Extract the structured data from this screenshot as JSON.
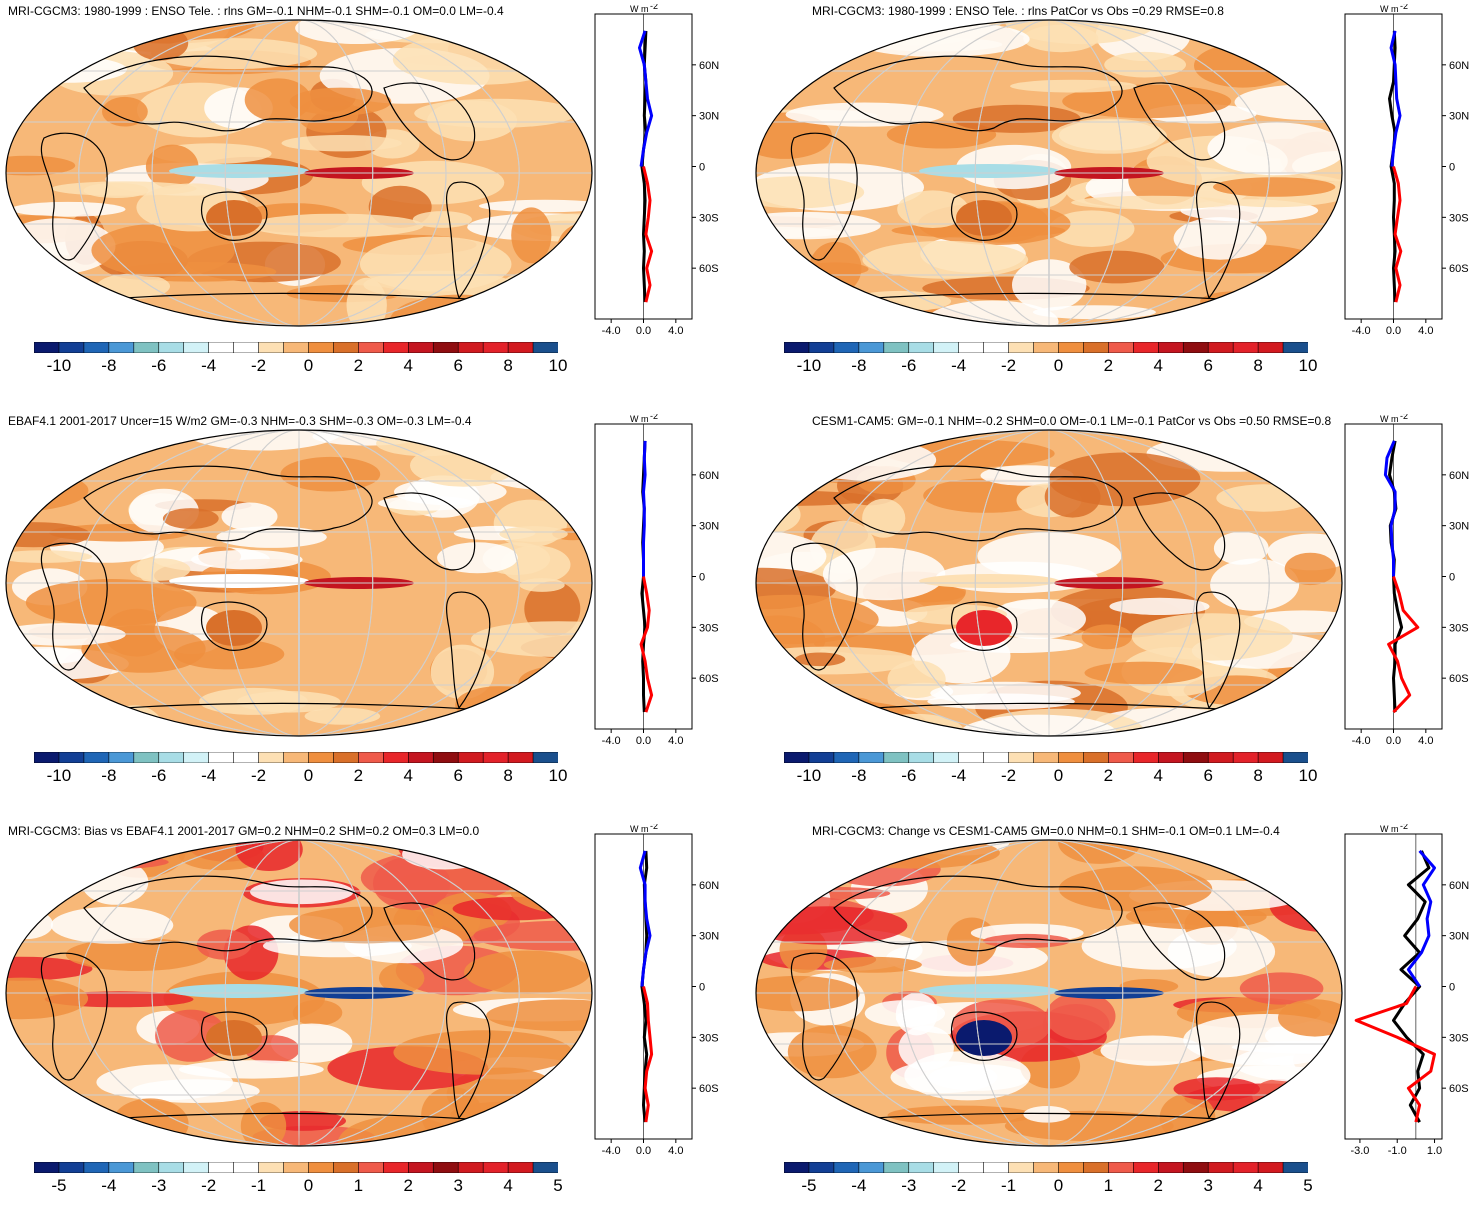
{
  "colors": {
    "palette": [
      "#0a1a6e",
      "#123f95",
      "#1f66b6",
      "#4b98d6",
      "#7fc2c2",
      "#a8dde6",
      "#d2f2f7",
      "#ffffff",
      "#ffffff",
      "#fde0b4",
      "#f7b878",
      "#ef8f3f",
      "#d9702a",
      "#ef5a4a",
      "#e8262a",
      "#c41520",
      "#8f0d10",
      "#d01a1f",
      "#e3222a",
      "#d2191f",
      "#1a4f8c"
    ],
    "obs_line": "#000000",
    "nh_line": "#0000ff",
    "sh_line": "#ff0000",
    "grid": "#cfcfcf"
  },
  "panels": [
    {
      "id": "p1",
      "title": "MRI-CGCM3: 1980-1999 : ENSO Tele. : rlns GM=-0.1 NHM=-0.1 SHM=-0.1 OM=0.0 LM=-0.4",
      "cbar_labels": [
        "-10",
        "-8",
        "-6",
        "-4",
        "-2",
        "0",
        "2",
        "4",
        "6",
        "8",
        "10"
      ],
      "profile_unit": "W m",
      "profile_unit_exp": "-2",
      "profile_x_ticks": [
        "-4.0",
        "0.0",
        "4.0"
      ],
      "profile_lat_ticks": [
        "60N",
        "30N",
        "0",
        "30S",
        "60S"
      ]
    },
    {
      "id": "p2",
      "title": "MRI-CGCM3: 1980-1999 : ENSO Tele. : rlns PatCor vs Obs =0.29 RMSE=0.8",
      "cbar_labels": [
        "-10",
        "-8",
        "-6",
        "-4",
        "-2",
        "0",
        "2",
        "4",
        "6",
        "8",
        "10"
      ],
      "profile_unit": "W m",
      "profile_unit_exp": "-2",
      "profile_x_ticks": [
        "-4.0",
        "0.0",
        "4.0"
      ],
      "profile_lat_ticks": [
        "60N",
        "30N",
        "0",
        "30S",
        "60S"
      ]
    },
    {
      "id": "p3",
      "title": "EBAF4.1 2001-2017 Uncer=15 W/m2 GM=-0.3 NHM=-0.3 SHM=-0.3 OM=-0.3 LM=-0.4",
      "cbar_labels": [
        "-10",
        "-8",
        "-6",
        "-4",
        "-2",
        "0",
        "2",
        "4",
        "6",
        "8",
        "10"
      ],
      "profile_unit": "W m",
      "profile_unit_exp": "-2",
      "profile_x_ticks": [
        "-4.0",
        "0.0",
        "4.0"
      ],
      "profile_lat_ticks": [
        "60N",
        "30N",
        "0",
        "30S",
        "60S"
      ]
    },
    {
      "id": "p4",
      "title": "CESM1-CAM5: GM=-0.1 NHM=-0.2 SHM=0.0 OM=-0.1 LM=-0.1 PatCor vs Obs =0.50 RMSE=0.8",
      "cbar_labels": [
        "-10",
        "-8",
        "-6",
        "-4",
        "-2",
        "0",
        "2",
        "4",
        "6",
        "8",
        "10"
      ],
      "profile_unit": "W m",
      "profile_unit_exp": "-2",
      "profile_x_ticks": [
        "-4.0",
        "0.0",
        "4.0"
      ],
      "profile_lat_ticks": [
        "60N",
        "30N",
        "0",
        "30S",
        "60S"
      ]
    },
    {
      "id": "p5",
      "title": "MRI-CGCM3: Bias vs EBAF4.1 2001-2017 GM=0.2 NHM=0.2 SHM=0.2 OM=0.3 LM=0.0",
      "cbar_labels": [
        "-5",
        "-4",
        "-3",
        "-2",
        "-1",
        "0",
        "1",
        "2",
        "3",
        "4",
        "5"
      ],
      "profile_unit": "W m",
      "profile_unit_exp": "-2",
      "profile_x_ticks": [
        "-4.0",
        "0.0",
        "4.0"
      ],
      "profile_lat_ticks": [
        "60N",
        "30N",
        "0",
        "30S",
        "60S"
      ]
    },
    {
      "id": "p6",
      "title": "MRI-CGCM3: Change vs CESM1-CAM5 GM=0.0 NHM=0.1 SHM=-0.1 OM=0.1 LM=-0.4",
      "cbar_labels": [
        "-5",
        "-4",
        "-3",
        "-2",
        "-1",
        "0",
        "1",
        "2",
        "3",
        "4",
        "5"
      ],
      "profile_unit": "W m",
      "profile_unit_exp": "-2",
      "profile_x_ticks": [
        "-3.0",
        "-1.0",
        "1.0"
      ],
      "profile_lat_ticks": [
        "60N",
        "30N",
        "0",
        "30S",
        "60S"
      ]
    }
  ],
  "chart_data": [
    {
      "type": "heatmap",
      "title": "MRI-CGCM3: 1980-1999 : ENSO Tele. : rlns GM=-0.1 NHM=-0.1 SHM=-0.1 OM=0.0 LM=-0.4",
      "colorbar_range": [
        -10,
        10
      ],
      "colorbar_ticks": [
        -10,
        -8,
        -6,
        -4,
        -2,
        0,
        2,
        4,
        6,
        8,
        10
      ],
      "zonal_profile": {
        "x_range": [
          -6,
          6
        ],
        "lat": [
          80,
          70,
          60,
          50,
          40,
          30,
          20,
          10,
          0,
          -10,
          -20,
          -30,
          -40,
          -50,
          -60,
          -70,
          -80
        ],
        "series": [
          {
            "values": [
              0.3,
              0.2,
              0.1,
              0.3,
              0.2,
              0.1,
              0.3,
              0.0,
              -0.2,
              0.1,
              0.2,
              0.1,
              0.0,
              0.1,
              0.0,
              0.1,
              0.2
            ]
          },
          {
            "values": [
              0.2,
              -0.5,
              0.1,
              0.3,
              0.5,
              1.0,
              0.4,
              0.0,
              -0.3,
              0.0,
              0.0,
              0.0,
              0.0,
              0.0,
              0.0,
              0.0,
              0.0
            ]
          },
          {
            "values": [
              0.0,
              0.0,
              0.0,
              0.0,
              0.0,
              0.0,
              0.0,
              0.0,
              0.0,
              0.5,
              0.8,
              0.6,
              0.3,
              1.0,
              0.4,
              0.8,
              0.3
            ]
          }
        ]
      }
    },
    {
      "type": "heatmap",
      "title": "MRI-CGCM3: 1980-1999 : ENSO Tele. : rlns PatCor vs Obs =0.29 RMSE=0.8",
      "colorbar_range": [
        -10,
        10
      ],
      "colorbar_ticks": [
        -10,
        -8,
        -6,
        -4,
        -2,
        0,
        2,
        4,
        6,
        8,
        10
      ],
      "zonal_profile": {
        "x_range": [
          -6,
          6
        ],
        "lat": [
          80,
          70,
          60,
          50,
          40,
          30,
          20,
          10,
          0,
          -10,
          -20,
          -30,
          -40,
          -50,
          -60,
          -70,
          -80
        ],
        "series": [
          {
            "values": [
              0.1,
              0.2,
              0.1,
              0.0,
              -0.5,
              -0.2,
              0.2,
              0.0,
              -0.3,
              0.1,
              0.1,
              0.0,
              0.1,
              0.2,
              0.0,
              0.1,
              0.2
            ]
          },
          {
            "values": [
              0.2,
              -0.3,
              0.2,
              0.3,
              0.4,
              0.8,
              0.3,
              0.0,
              -0.2,
              0.0,
              0.0,
              0.0,
              0.0,
              0.0,
              0.0,
              0.0,
              0.0
            ]
          },
          {
            "values": [
              0.0,
              0.0,
              0.0,
              0.0,
              0.0,
              0.0,
              0.0,
              0.0,
              0.0,
              0.6,
              0.8,
              0.5,
              0.2,
              0.9,
              0.3,
              0.8,
              0.3
            ]
          }
        ]
      }
    },
    {
      "type": "heatmap",
      "title": "EBAF4.1 2001-2017 Uncer=15 W/m2 GM=-0.3 NHM=-0.3 SHM=-0.3 OM=-0.3 LM=-0.4",
      "colorbar_range": [
        -10,
        10
      ],
      "colorbar_ticks": [
        -10,
        -8,
        -6,
        -4,
        -2,
        0,
        2,
        4,
        6,
        8,
        10
      ],
      "zonal_profile": {
        "x_range": [
          -6,
          6
        ],
        "lat": [
          80,
          70,
          60,
          50,
          40,
          30,
          20,
          10,
          0,
          -10,
          -20,
          -30,
          -40,
          -50,
          -60,
          -70,
          -80
        ],
        "series": [
          {
            "values": [
              0.2,
              0.1,
              0.0,
              -0.1,
              0.1,
              0.0,
              -0.1,
              0.0,
              0.0,
              -0.2,
              0.0,
              0.2,
              0.0,
              -0.1,
              0.0,
              0.0,
              0.1
            ]
          },
          {
            "values": [
              0.2,
              0.1,
              0.2,
              0.0,
              0.1,
              0.1,
              0.0,
              0.0,
              0.0,
              0.0,
              0.0,
              0.0,
              0.0,
              0.0,
              0.0,
              0.0,
              0.0
            ]
          },
          {
            "values": [
              0.0,
              0.0,
              0.0,
              0.0,
              0.0,
              0.0,
              0.0,
              0.0,
              0.0,
              0.4,
              0.7,
              0.5,
              -0.3,
              0.2,
              0.5,
              1.0,
              0.3
            ]
          }
        ]
      }
    },
    {
      "type": "heatmap",
      "title": "CESM1-CAM5: GM=-0.1 NHM=-0.2 SHM=0.0 OM=-0.1 LM=-0.1 PatCor vs Obs =0.50 RMSE=0.8",
      "colorbar_range": [
        -10,
        10
      ],
      "colorbar_ticks": [
        -10,
        -8,
        -6,
        -4,
        -2,
        0,
        2,
        4,
        6,
        8,
        10
      ],
      "zonal_profile": {
        "x_range": [
          -6,
          6
        ],
        "lat": [
          80,
          70,
          60,
          50,
          40,
          30,
          20,
          10,
          0,
          -10,
          -20,
          -30,
          -40,
          -50,
          -60,
          -70,
          -80
        ],
        "series": [
          {
            "values": [
              0.2,
              -0.2,
              -0.5,
              0.1,
              0.3,
              -0.4,
              -0.3,
              0.1,
              0.0,
              0.1,
              0.5,
              1.0,
              0.2,
              0.2,
              0.0,
              0.1,
              0.2
            ]
          },
          {
            "values": [
              0.1,
              -0.8,
              -1.0,
              0.2,
              0.2,
              -0.3,
              -0.2,
              0.0,
              0.0,
              0.0,
              0.0,
              0.0,
              0.0,
              0.0,
              0.0,
              0.0,
              0.0
            ]
          },
          {
            "values": [
              0.0,
              0.0,
              0.0,
              0.0,
              0.0,
              0.0,
              0.0,
              0.0,
              0.0,
              0.7,
              1.2,
              3.0,
              -0.6,
              0.5,
              1.0,
              2.0,
              0.0
            ]
          }
        ]
      }
    },
    {
      "type": "heatmap",
      "title": "MRI-CGCM3: Bias vs EBAF4.1 2001-2017 GM=0.2 NHM=0.2 SHM=0.2 OM=0.3 LM=0.0",
      "colorbar_range": [
        -5,
        5
      ],
      "colorbar_ticks": [
        -5,
        -4,
        -3,
        -2,
        -1,
        0,
        1,
        2,
        3,
        4,
        5
      ],
      "zonal_profile": {
        "x_range": [
          -6,
          6
        ],
        "lat": [
          80,
          70,
          60,
          50,
          40,
          30,
          20,
          10,
          0,
          -10,
          -20,
          -30,
          -40,
          -50,
          -60,
          -70,
          -80
        ],
        "series": [
          {
            "values": [
              0.3,
              0.4,
              0.1,
              0.2,
              0.3,
              0.4,
              0.3,
              0.0,
              -0.2,
              0.1,
              0.3,
              0.1,
              0.4,
              0.2,
              0.1,
              0.0,
              0.2
            ]
          },
          {
            "values": [
              0.2,
              -0.4,
              0.2,
              0.2,
              0.4,
              0.8,
              0.3,
              0.0,
              -0.2,
              0.0,
              0.0,
              0.0,
              0.0,
              0.0,
              0.0,
              0.0,
              0.0
            ]
          },
          {
            "values": [
              0.0,
              0.0,
              0.0,
              0.0,
              0.0,
              0.0,
              0.0,
              0.0,
              0.0,
              0.5,
              0.6,
              0.8,
              1.0,
              0.4,
              0.2,
              0.6,
              0.3
            ]
          }
        ]
      }
    },
    {
      "type": "heatmap",
      "title": "MRI-CGCM3: Change vs CESM1-CAM5 GM=0.0 NHM=0.1 SHM=-0.1 OM=0.1 LM=-0.4",
      "colorbar_range": [
        -5,
        5
      ],
      "colorbar_ticks": [
        -5,
        -4,
        -3,
        -2,
        -1,
        0,
        1,
        2,
        3,
        4,
        5
      ],
      "zonal_profile": {
        "x_range": [
          -3.8,
          1.4
        ],
        "lat": [
          80,
          70,
          60,
          50,
          40,
          30,
          20,
          10,
          0,
          -10,
          -20,
          -30,
          -40,
          -50,
          -60,
          -70,
          -80
        ],
        "series": [
          {
            "values": [
              0.3,
              0.7,
              -0.4,
              0.5,
              0.1,
              -0.6,
              0.2,
              -0.8,
              0.2,
              -0.6,
              -1.2,
              -0.5,
              0.4,
              0.1,
              0.2,
              -0.3,
              0.2
            ]
          },
          {
            "values": [
              0.2,
              1.0,
              0.4,
              0.8,
              0.6,
              0.7,
              0.3,
              -0.4,
              0.2,
              0.0,
              0.0,
              0.0,
              0.0,
              0.0,
              0.0,
              0.0,
              0.0
            ]
          },
          {
            "values": [
              0.0,
              0.0,
              0.0,
              0.0,
              0.0,
              0.0,
              0.0,
              0.0,
              0.0,
              -0.5,
              -3.2,
              -1.0,
              1.0,
              0.8,
              -0.4,
              0.2,
              0.0
            ]
          }
        ]
      }
    }
  ]
}
